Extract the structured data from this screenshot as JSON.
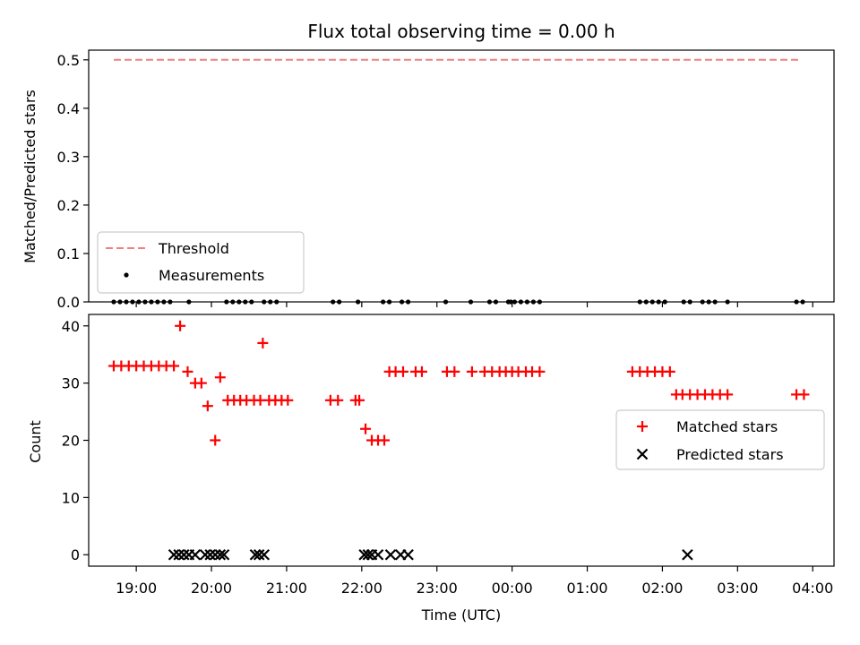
{
  "chart_data": [
    {
      "type": "line",
      "title": "Flux total observing time = 0.00 h",
      "xlabel": "",
      "ylabel": "Matched/Predicted stars",
      "ylim": [
        0,
        0.52
      ],
      "xlim": [
        "18:22",
        "04:17"
      ],
      "yticks": [
        "0.0",
        "0.1",
        "0.2",
        "0.3",
        "0.4",
        "0.5"
      ],
      "legend_position": "lower-left",
      "series": [
        {
          "name": "Threshold",
          "kind": "dashed-line",
          "color": "#f08080",
          "x": [
            "18:42",
            "03:50"
          ],
          "y": [
            0.5,
            0.5
          ]
        },
        {
          "name": "Measurements",
          "kind": "scatter",
          "color": "#000000",
          "x": [
            "18:42",
            "18:47",
            "18:52",
            "18:57",
            "19:02",
            "19:07",
            "19:12",
            "19:17",
            "19:22",
            "19:27",
            "19:42",
            "20:12",
            "20:17",
            "20:22",
            "20:27",
            "20:32",
            "20:42",
            "20:47",
            "20:52",
            "21:37",
            "21:42",
            "21:57",
            "22:17",
            "22:22",
            "22:32",
            "22:37",
            "23:07",
            "23:27",
            "23:42",
            "23:47",
            "23:57",
            "23:59",
            "00:02",
            "00:07",
            "00:12",
            "00:17",
            "00:22",
            "01:42",
            "01:47",
            "01:52",
            "01:57",
            "02:02",
            "02:17",
            "02:22",
            "02:32",
            "02:37",
            "02:42",
            "02:52",
            "03:47",
            "03:52"
          ],
          "y": [
            0,
            0,
            0,
            0,
            0,
            0,
            0,
            0,
            0,
            0,
            0,
            0,
            0,
            0,
            0,
            0,
            0,
            0,
            0,
            0,
            0,
            0,
            0,
            0,
            0,
            0,
            0,
            0,
            0,
            0,
            0,
            0,
            0,
            0,
            0,
            0,
            0,
            0,
            0,
            0,
            0,
            0,
            0,
            0,
            0,
            0,
            0,
            0,
            0,
            0
          ]
        }
      ]
    },
    {
      "type": "scatter",
      "title": "",
      "xlabel": "Time (UTC)",
      "ylabel": "Count",
      "ylim": [
        -2,
        42
      ],
      "xlim": [
        "18:22",
        "04:17"
      ],
      "xticks": [
        "19:00",
        "20:00",
        "21:00",
        "22:00",
        "23:00",
        "00:00",
        "01:00",
        "02:00",
        "03:00",
        "04:00"
      ],
      "yticks": [
        "0",
        "10",
        "20",
        "30",
        "40"
      ],
      "legend_position": "center-right",
      "series": [
        {
          "name": "Matched stars",
          "marker": "+",
          "color": "#ff0000",
          "x": [
            "18:42",
            "18:48",
            "18:54",
            "19:00",
            "19:06",
            "19:12",
            "19:18",
            "19:24",
            "19:30",
            "19:35",
            "19:41",
            "19:47",
            "19:52",
            "19:57",
            "20:03",
            "20:07",
            "20:13",
            "20:18",
            "20:23",
            "20:28",
            "20:34",
            "20:39",
            "20:41",
            "20:46",
            "20:51",
            "20:56",
            "21:01",
            "21:35",
            "21:41",
            "21:55",
            "21:58",
            "22:03",
            "22:08",
            "22:13",
            "22:18",
            "22:22",
            "22:27",
            "22:33",
            "22:43",
            "22:48",
            "23:08",
            "23:14",
            "23:28",
            "23:38",
            "23:44",
            "23:50",
            "23:55",
            "00:00",
            "00:05",
            "00:11",
            "00:16",
            "00:22",
            "01:36",
            "01:42",
            "01:48",
            "01:54",
            "02:00",
            "02:06",
            "02:11",
            "02:16",
            "02:22",
            "02:28",
            "02:34",
            "02:40",
            "02:46",
            "02:52",
            "03:47",
            "03:53"
          ],
          "y": [
            33,
            33,
            33,
            33,
            33,
            33,
            33,
            33,
            33,
            40,
            32,
            30,
            30,
            26,
            20,
            31,
            27,
            27,
            27,
            27,
            27,
            27,
            37,
            27,
            27,
            27,
            27,
            27,
            27,
            27,
            27,
            22,
            20,
            20,
            20,
            32,
            32,
            32,
            32,
            32,
            32,
            32,
            32,
            32,
            32,
            32,
            32,
            32,
            32,
            32,
            32,
            32,
            32,
            32,
            32,
            32,
            32,
            32,
            28,
            28,
            28,
            28,
            28,
            28,
            28,
            28,
            28,
            28
          ]
        },
        {
          "name": "Predicted stars",
          "marker": "x",
          "color": "#000000",
          "x": [
            "19:30",
            "19:34",
            "19:38",
            "19:42",
            "19:47",
            "19:55",
            "19:59",
            "20:03",
            "20:07",
            "20:10",
            "20:35",
            "20:38",
            "20:42",
            "22:02",
            "22:05",
            "22:08",
            "22:13",
            "22:23",
            "22:31",
            "22:37",
            "02:20"
          ],
          "y": [
            0,
            0,
            0,
            0,
            0,
            0,
            0,
            0,
            0,
            0,
            0,
            0,
            0,
            0,
            0,
            0,
            0,
            0,
            0,
            0,
            0
          ]
        }
      ]
    }
  ]
}
